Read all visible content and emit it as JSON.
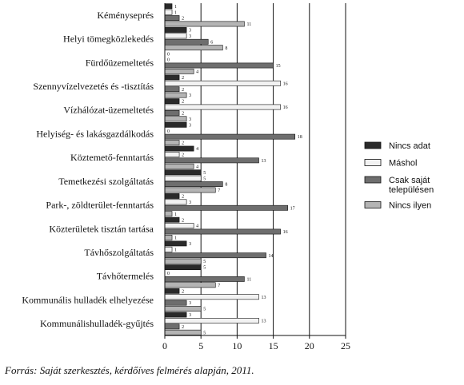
{
  "chart_data": {
    "type": "bar",
    "orientation": "horizontal",
    "categories": [
      "Kéményseprés",
      "Helyi tömegközlekedés",
      "Fürdőüzemeltetés",
      "Szennyvízelvezetés és -tisztítás",
      "Vízhálózat-üzemeltetés",
      "Helyiség- és lakásgazdálkodás",
      "Köztemető-fenntartás",
      "Temetkezési szolgáltatás",
      "Park-, zöldterület-fenntartás",
      "Közterületek tisztán tartása",
      "Távhőszolgáltatás",
      "Távhőtermelés",
      "Kommunális hulladék elhelyezése",
      "Kommunálishulladék-gyűjtés"
    ],
    "series": [
      {
        "name": "Nincs adat",
        "color": "#2a2a2a",
        "values": [
          1,
          3,
          0,
          2,
          2,
          3,
          4,
          5,
          2,
          2,
          3,
          5,
          2,
          3
        ]
      },
      {
        "name": "Máshol",
        "color": "#f2f2f2",
        "values": [
          1,
          3,
          0,
          16,
          16,
          0,
          2,
          5,
          3,
          4,
          1,
          0,
          13,
          13
        ]
      },
      {
        "name": "Csak saját településen",
        "color": "#6e6e6e",
        "values": [
          2,
          6,
          15,
          2,
          2,
          18,
          13,
          8,
          17,
          16,
          14,
          11,
          3,
          2
        ]
      },
      {
        "name": "Nincs ilyen",
        "color": "#b4b4b4",
        "values": [
          11,
          8,
          4,
          3,
          3,
          2,
          4,
          7,
          1,
          1,
          5,
          7,
          5,
          5
        ]
      }
    ],
    "xticks": [
      0,
      5,
      10,
      15,
      20,
      25
    ],
    "xlim": [
      0,
      25
    ],
    "grid": "vertical lines at major ticks",
    "legend": "right"
  },
  "source_note": "Forrás: Saját szerkesztés, kérdőíves felmérés alapján, 2011."
}
